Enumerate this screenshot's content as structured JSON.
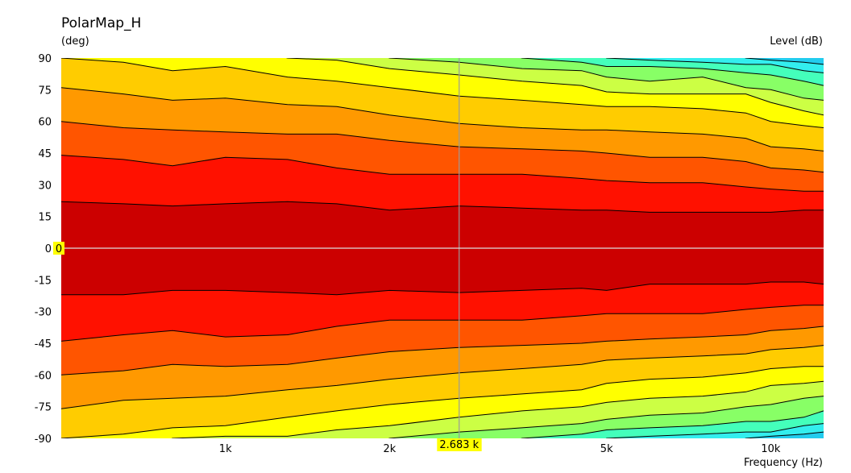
{
  "chart_data": {
    "type": "heatmap",
    "title": "PolarMap_H",
    "ylabel": "(deg)",
    "colorbar_label": "Level  (dB)",
    "xlabel": "Frequency  (Hz)",
    "x_scale": "log",
    "xlim": [
      500,
      12500
    ],
    "ylim": [
      -90,
      90
    ],
    "x_ticks": [
      {
        "value": 1000,
        "label": "1k"
      },
      {
        "value": 2000,
        "label": "2k"
      },
      {
        "value": 5000,
        "label": "5k"
      },
      {
        "value": 10000,
        "label": "10k"
      }
    ],
    "y_ticks": [
      {
        "value": 90,
        "label": "90"
      },
      {
        "value": 75,
        "label": "75"
      },
      {
        "value": 60,
        "label": "60"
      },
      {
        "value": 45,
        "label": "45"
      },
      {
        "value": 30,
        "label": "30"
      },
      {
        "value": 15,
        "label": "15"
      },
      {
        "value": 0,
        "label": "0"
      },
      {
        "value": -15,
        "label": "-15"
      },
      {
        "value": -30,
        "label": "-30"
      },
      {
        "value": -45,
        "label": "-45"
      },
      {
        "value": -60,
        "label": "-60"
      },
      {
        "value": -75,
        "label": "-75"
      },
      {
        "value": -90,
        "label": "-90"
      }
    ],
    "cursor": {
      "x": 2683,
      "x_label": "2.683 k",
      "y": 0,
      "y_label": "0"
    },
    "band_colors": [
      "#cc0000",
      "#ff1100",
      "#ff5500",
      "#ff9900",
      "#ffcc00",
      "#ffff00",
      "#ccff44",
      "#88ff66",
      "#44ffbb",
      "#33eeee",
      "#22ccee"
    ],
    "contour_color": "#000000",
    "frequencies": [
      500,
      650,
      800,
      1000,
      1300,
      1600,
      2000,
      2683,
      3500,
      4500,
      5000,
      6000,
      7500,
      9000,
      10000,
      11500,
      12500
    ],
    "upper_contours_deg": [
      [
        22,
        21,
        20,
        21,
        22,
        21,
        18,
        20,
        19,
        18,
        18,
        17,
        17,
        17,
        17,
        18,
        18
      ],
      [
        44,
        42,
        39,
        43,
        42,
        38,
        35,
        35,
        35,
        33,
        32,
        31,
        31,
        29,
        28,
        27,
        27
      ],
      [
        60,
        57,
        56,
        55,
        54,
        54,
        51,
        48,
        47,
        46,
        45,
        43,
        43,
        41,
        38,
        37,
        36
      ],
      [
        76,
        73,
        70,
        71,
        68,
        67,
        63,
        59,
        57,
        56,
        56,
        55,
        54,
        52,
        48,
        47,
        46
      ],
      [
        90,
        88,
        84,
        86,
        81,
        79,
        76,
        72,
        70,
        68,
        67,
        67,
        66,
        64,
        60,
        58,
        57
      ],
      [
        null,
        null,
        null,
        null,
        90,
        89,
        85,
        82,
        79,
        77,
        74,
        73,
        73,
        73,
        69,
        65,
        63
      ],
      [
        null,
        null,
        null,
        null,
        null,
        null,
        90,
        88,
        85,
        84,
        81,
        79,
        81,
        76,
        75,
        71,
        70
      ],
      [
        null,
        null,
        null,
        null,
        null,
        null,
        null,
        null,
        90,
        88,
        86,
        86,
        85,
        83,
        82,
        79,
        77
      ],
      [
        null,
        null,
        null,
        null,
        null,
        null,
        null,
        null,
        null,
        null,
        90,
        89,
        88,
        87,
        87,
        84,
        83
      ],
      [
        null,
        null,
        null,
        null,
        null,
        null,
        null,
        null,
        null,
        null,
        null,
        null,
        null,
        90,
        89,
        88,
        87
      ]
    ],
    "lower_contours_deg": [
      [
        -22,
        -22,
        -20,
        -20,
        -21,
        -22,
        -20,
        -21,
        -20,
        -19,
        -20,
        -17,
        -17,
        -17,
        -16,
        -16,
        -17
      ],
      [
        -44,
        -41,
        -39,
        -42,
        -41,
        -37,
        -34,
        -34,
        -34,
        -32,
        -31,
        -31,
        -31,
        -29,
        -28,
        -27,
        -27
      ],
      [
        -60,
        -58,
        -55,
        -56,
        -55,
        -52,
        -49,
        -47,
        -46,
        -45,
        -44,
        -43,
        -42,
        -41,
        -39,
        -38,
        -37
      ],
      [
        -76,
        -72,
        -71,
        -70,
        -67,
        -65,
        -62,
        -59,
        -57,
        -55,
        -53,
        -52,
        -51,
        -50,
        -48,
        -47,
        -46
      ],
      [
        -90,
        -88,
        -85,
        -84,
        -80,
        -77,
        -74,
        -71,
        -69,
        -67,
        -64,
        -62,
        -61,
        -59,
        -57,
        -56,
        -56
      ],
      [
        null,
        null,
        -90,
        -89,
        -89,
        -86,
        -84,
        -80,
        -77,
        -75,
        -73,
        -71,
        -70,
        -68,
        -65,
        -64,
        -63
      ],
      [
        null,
        null,
        null,
        null,
        null,
        null,
        -90,
        -87,
        -85,
        -83,
        -81,
        -79,
        -78,
        -75,
        -74,
        -71,
        -70
      ],
      [
        null,
        null,
        null,
        null,
        null,
        null,
        null,
        null,
        -90,
        -88,
        -86,
        -85,
        -84,
        -82,
        -82,
        -80,
        -77
      ],
      [
        null,
        null,
        null,
        null,
        null,
        null,
        null,
        null,
        null,
        null,
        -90,
        -89,
        -88,
        -87,
        -87,
        -84,
        -83
      ],
      [
        null,
        null,
        null,
        null,
        null,
        null,
        null,
        null,
        null,
        null,
        null,
        null,
        null,
        -90,
        -89,
        -88,
        -87
      ]
    ]
  }
}
